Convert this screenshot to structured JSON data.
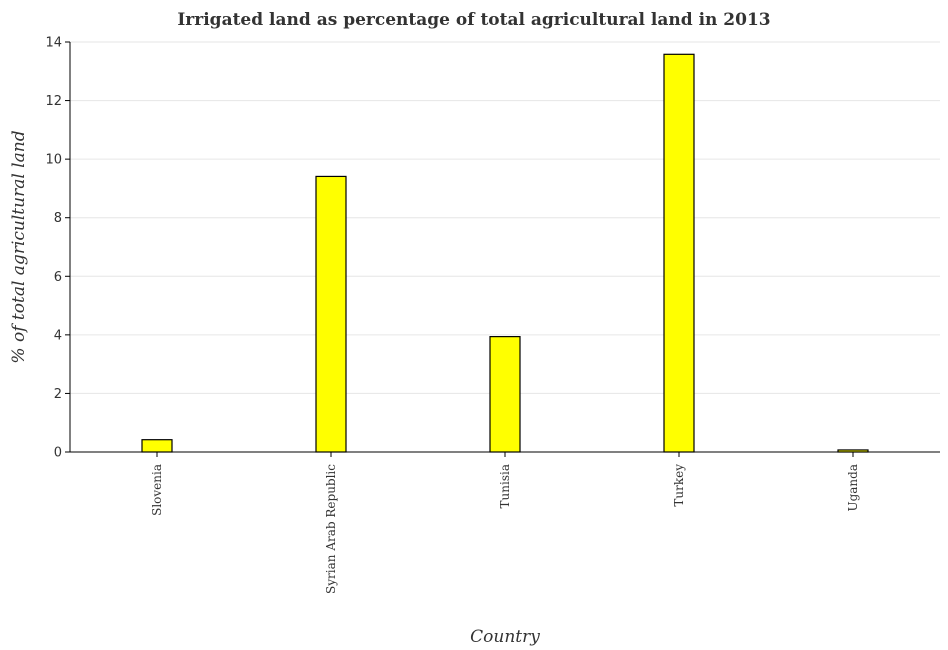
{
  "chart_data": {
    "type": "bar",
    "title": "Irrigated land as percentage of total agricultural land in 2013",
    "xlabel": "Country",
    "ylabel": "% of total agricultural land",
    "categories": [
      "Slovenia",
      "Syrian Arab Republic",
      "Tunisia",
      "Turkey",
      "Uganda"
    ],
    "values": [
      0.42,
      9.41,
      3.94,
      13.58,
      0.07
    ],
    "ylim": [
      0,
      14
    ],
    "yticks": [
      0,
      2,
      4,
      6,
      8,
      10,
      12,
      14
    ],
    "grid": true,
    "bar_color": "#ffff00"
  }
}
